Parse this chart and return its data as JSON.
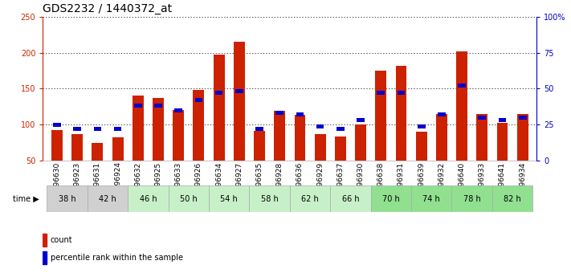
{
  "title": "GDS2232 / 1440372_at",
  "samples": [
    "GSM96630",
    "GSM96923",
    "GSM96631",
    "GSM96924",
    "GSM96632",
    "GSM96925",
    "GSM96633",
    "GSM96926",
    "GSM96634",
    "GSM96927",
    "GSM96635",
    "GSM96928",
    "GSM96636",
    "GSM96929",
    "GSM96637",
    "GSM96930",
    "GSM96638",
    "GSM96931",
    "GSM96639",
    "GSM96932",
    "GSM96640",
    "GSM96933",
    "GSM96641",
    "GSM96934"
  ],
  "time_groups": [
    {
      "label": "38 h",
      "samples": [
        "GSM96630",
        "GSM96923"
      ],
      "color": "#d0d0d0"
    },
    {
      "label": "42 h",
      "samples": [
        "GSM96631",
        "GSM96924"
      ],
      "color": "#d0d0d0"
    },
    {
      "label": "46 h",
      "samples": [
        "GSM96632",
        "GSM96925"
      ],
      "color": "#c8f0c8"
    },
    {
      "label": "50 h",
      "samples": [
        "GSM96633",
        "GSM96926"
      ],
      "color": "#c8f0c8"
    },
    {
      "label": "54 h",
      "samples": [
        "GSM96634",
        "GSM96927"
      ],
      "color": "#c8f0c8"
    },
    {
      "label": "58 h",
      "samples": [
        "GSM96635",
        "GSM96928"
      ],
      "color": "#c8f0c8"
    },
    {
      "label": "62 h",
      "samples": [
        "GSM96636",
        "GSM96929"
      ],
      "color": "#c8f0c8"
    },
    {
      "label": "66 h",
      "samples": [
        "GSM96637",
        "GSM96930"
      ],
      "color": "#c8f0c8"
    },
    {
      "label": "70 h",
      "samples": [
        "GSM96638",
        "GSM96931"
      ],
      "color": "#90e090"
    },
    {
      "label": "74 h",
      "samples": [
        "GSM96639",
        "GSM96932"
      ],
      "color": "#90e090"
    },
    {
      "label": "78 h",
      "samples": [
        "GSM96640",
        "GSM96933"
      ],
      "color": "#90e090"
    },
    {
      "label": "82 h",
      "samples": [
        "GSM96641",
        "GSM96934"
      ],
      "color": "#90e090"
    }
  ],
  "count_values": [
    93,
    87,
    75,
    82,
    140,
    137,
    120,
    148,
    197,
    215,
    91,
    119,
    114,
    87,
    84,
    100,
    175,
    182,
    90,
    115,
    202,
    115,
    103,
    115
  ],
  "percentile_values": [
    25,
    22,
    22,
    22,
    38,
    38,
    35,
    42,
    47,
    48,
    22,
    33,
    32,
    24,
    22,
    28,
    47,
    47,
    24,
    32,
    52,
    30,
    28,
    30
  ],
  "bar_color": "#cc2200",
  "dot_color": "#0000cc",
  "ylim_left": [
    50,
    250
  ],
  "ylim_right": [
    0,
    100
  ],
  "yticks_left": [
    50,
    100,
    150,
    200,
    250
  ],
  "yticks_right": [
    0,
    25,
    50,
    75,
    100
  ],
  "ylabel_left_color": "#cc2200",
  "ylabel_right_color": "#0000cc",
  "bg_color": "#ffffff",
  "legend_count_label": "count",
  "legend_percentile_label": "percentile rank within the sample",
  "title_fontsize": 10,
  "tick_fontsize": 6.5,
  "bar_width": 0.55
}
